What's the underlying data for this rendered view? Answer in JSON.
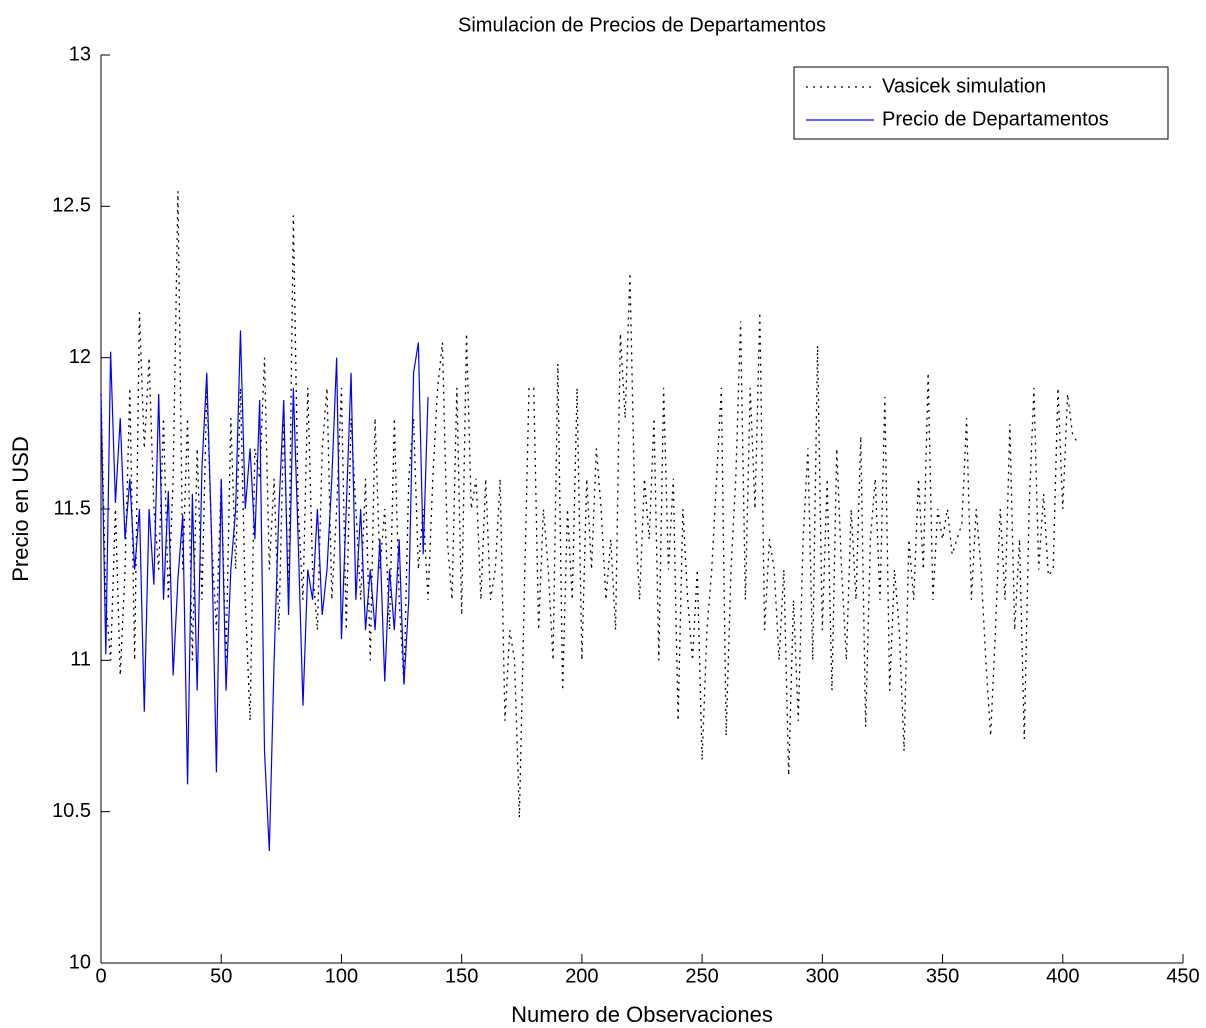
{
  "chart_data": {
    "type": "line",
    "title": "Simulacion de Precios de Departamentos",
    "x_label": "Numero de Observaciones",
    "y_label": "Precio en USD",
    "xlim": [
      0,
      450
    ],
    "xticks": [
      0,
      50,
      100,
      150,
      200,
      250,
      300,
      350,
      400,
      450
    ],
    "ylim": [
      10,
      13
    ],
    "yticks": [
      10,
      10.5,
      11,
      11.5,
      12,
      12.5,
      13
    ],
    "legend": "upper right",
    "series": [
      {
        "name": "Vasicek simulation",
        "color": "#000000",
        "line_style": "dotted",
        "x": [
          0,
          2,
          4,
          6,
          8,
          10,
          12,
          14,
          16,
          18,
          20,
          22,
          24,
          26,
          28,
          30,
          32,
          34,
          36,
          38,
          40,
          42,
          44,
          46,
          48,
          50,
          52,
          54,
          56,
          58,
          60,
          62,
          64,
          66,
          68,
          70,
          72,
          74,
          76,
          78,
          80,
          82,
          84,
          86,
          88,
          90,
          92,
          94,
          96,
          98,
          100,
          102,
          104,
          106,
          108,
          110,
          112,
          114,
          116,
          118,
          120,
          122,
          124,
          126,
          128,
          130,
          132,
          134,
          136,
          138,
          140,
          142,
          144,
          146,
          148,
          150,
          152,
          154,
          156,
          158,
          160,
          162,
          164,
          166,
          168,
          170,
          172,
          174,
          176,
          178,
          180,
          182,
          184,
          186,
          188,
          190,
          192,
          194,
          196,
          198,
          200,
          202,
          204,
          206,
          208,
          210,
          212,
          214,
          216,
          218,
          220,
          222,
          224,
          226,
          228,
          230,
          232,
          234,
          236,
          238,
          240,
          242,
          244,
          246,
          248,
          250,
          252,
          254,
          256,
          258,
          260,
          262,
          264,
          266,
          268,
          270,
          272,
          274,
          276,
          278,
          280,
          282,
          284,
          286,
          288,
          290,
          292,
          294,
          296,
          298,
          300,
          302,
          304,
          306,
          308,
          310,
          312,
          314,
          316,
          318,
          320,
          322,
          324,
          326,
          328,
          330,
          332,
          334,
          336,
          338,
          340,
          342,
          344,
          346,
          348,
          350,
          352,
          354,
          356,
          358,
          360,
          362,
          364,
          366,
          368,
          370,
          372,
          374,
          376,
          378,
          380,
          382,
          384,
          386,
          388,
          390,
          392,
          394,
          396,
          398,
          400,
          402,
          404,
          406
        ],
        "values": [
          11.88,
          11.2,
          11.0,
          11.5,
          10.95,
          11.3,
          11.9,
          11.0,
          12.15,
          11.7,
          12.0,
          11.5,
          11.3,
          11.8,
          11.2,
          11.6,
          12.55,
          11.3,
          11.8,
          11.0,
          11.7,
          11.2,
          11.9,
          11.4,
          11.1,
          11.6,
          11.0,
          11.8,
          11.3,
          11.9,
          11.2,
          10.8,
          11.7,
          11.6,
          12.0,
          11.3,
          11.6,
          11.1,
          11.8,
          11.2,
          12.47,
          11.5,
          11.2,
          11.9,
          11.3,
          11.1,
          11.7,
          11.9,
          11.2,
          11.5,
          11.9,
          11.1,
          11.8,
          11.5,
          11.2,
          11.6,
          11.0,
          11.8,
          11.3,
          11.5,
          11.1,
          11.8,
          11.2,
          10.92,
          11.6,
          11.8,
          11.3,
          11.5,
          11.2,
          11.6,
          11.9,
          12.05,
          11.4,
          11.2,
          11.9,
          11.15,
          12.08,
          11.5,
          11.6,
          11.2,
          11.6,
          11.2,
          11.3,
          11.6,
          10.8,
          11.1,
          11.0,
          10.48,
          11.2,
          11.9,
          11.9,
          11.1,
          11.5,
          11.3,
          11.0,
          11.98,
          10.9,
          11.5,
          11.2,
          11.9,
          11.0,
          11.6,
          11.3,
          11.7,
          11.5,
          11.2,
          11.4,
          11.1,
          12.08,
          11.8,
          12.28,
          11.5,
          11.2,
          11.6,
          11.4,
          11.8,
          11.0,
          11.9,
          11.3,
          11.6,
          10.8,
          11.5,
          11.2,
          11.0,
          11.3,
          10.67,
          11.1,
          11.3,
          11.6,
          11.9,
          10.75,
          11.3,
          11.6,
          12.12,
          11.2,
          11.9,
          11.5,
          12.15,
          11.1,
          11.4,
          11.3,
          11.0,
          11.3,
          10.62,
          11.2,
          10.8,
          11.4,
          11.7,
          11.0,
          12.04,
          11.1,
          11.6,
          10.9,
          11.7,
          11.3,
          11.0,
          11.5,
          11.2,
          11.74,
          10.78,
          11.4,
          11.6,
          11.2,
          11.87,
          10.9,
          11.3,
          11.1,
          10.7,
          11.4,
          11.2,
          11.6,
          11.3,
          11.95,
          11.2,
          11.5,
          11.4,
          11.5,
          11.35,
          11.4,
          11.45,
          11.8,
          11.2,
          11.5,
          11.3,
          11.0,
          10.75,
          11.1,
          11.5,
          11.2,
          11.78,
          11.1,
          11.4,
          10.74,
          11.5,
          11.9,
          11.3,
          11.55,
          11.28,
          11.3,
          11.9,
          11.5,
          11.88,
          11.75,
          11.72
        ]
      },
      {
        "name": "Precio de Departamentos",
        "color": "#0000ff",
        "line_style": "solid",
        "x": [
          0,
          2,
          4,
          6,
          8,
          10,
          12,
          14,
          16,
          18,
          20,
          22,
          24,
          26,
          28,
          30,
          32,
          34,
          36,
          38,
          40,
          42,
          44,
          46,
          48,
          50,
          52,
          54,
          56,
          58,
          60,
          62,
          64,
          66,
          68,
          70,
          72,
          74,
          76,
          78,
          80,
          82,
          84,
          86,
          88,
          90,
          92,
          94,
          96,
          98,
          100,
          102,
          104,
          106,
          108,
          110,
          112,
          114,
          116,
          118,
          120,
          122,
          124,
          126,
          128,
          130,
          132,
          134,
          136
        ],
        "values": [
          11.88,
          11.02,
          12.02,
          11.52,
          11.8,
          11.4,
          11.6,
          11.3,
          11.5,
          10.83,
          11.5,
          11.25,
          11.88,
          11.2,
          11.56,
          10.95,
          11.27,
          11.48,
          10.59,
          11.55,
          10.9,
          11.64,
          11.95,
          11.4,
          10.63,
          11.6,
          10.9,
          11.3,
          11.5,
          12.09,
          11.5,
          11.7,
          11.4,
          11.86,
          10.7,
          10.37,
          11.0,
          11.5,
          11.86,
          11.15,
          11.9,
          11.4,
          10.85,
          11.3,
          11.2,
          11.5,
          11.15,
          11.3,
          11.6,
          12.0,
          11.07,
          11.5,
          11.95,
          11.2,
          11.5,
          11.1,
          11.3,
          11.1,
          11.4,
          10.93,
          11.3,
          11.1,
          11.4,
          10.92,
          11.2,
          11.95,
          12.05,
          11.35,
          11.87
        ]
      }
    ]
  }
}
